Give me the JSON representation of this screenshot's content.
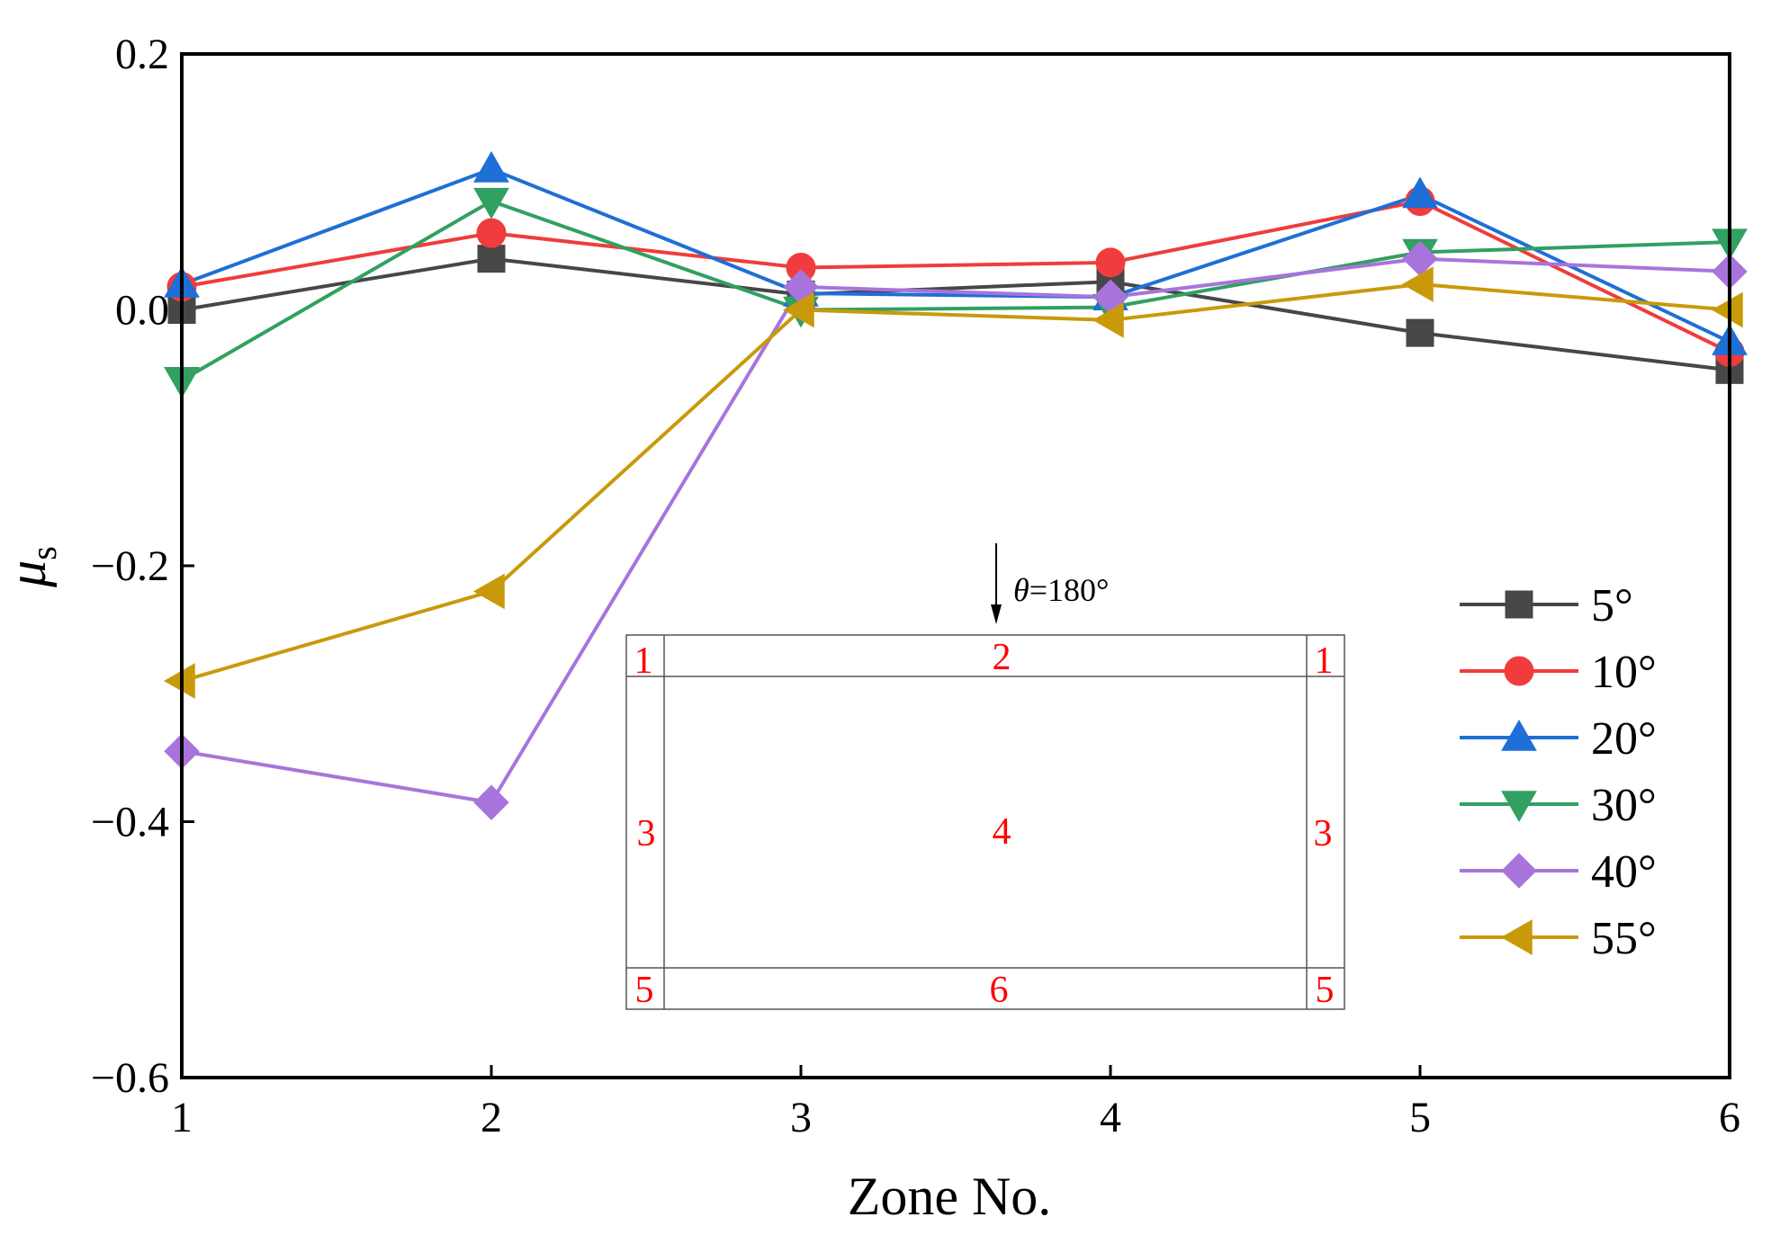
{
  "chart_data": {
    "type": "line",
    "title": "",
    "xlabel": "Zone No.",
    "ylabel_main": "μ",
    "ylabel_sub": "s",
    "x": [
      1,
      2,
      3,
      4,
      5,
      6
    ],
    "xlim": [
      1,
      6
    ],
    "ylim": [
      -0.6,
      0.2
    ],
    "xticks": [
      1,
      2,
      3,
      4,
      5,
      6
    ],
    "xtick_labels": [
      "1",
      "2",
      "3",
      "4",
      "5",
      "6"
    ],
    "yticks": [
      -0.6,
      -0.4,
      -0.2,
      0.0,
      0.2
    ],
    "ytick_labels": [
      "−0.6",
      "−0.4",
      "−0.2",
      "0.0",
      "0.2"
    ],
    "grid": false,
    "legend_position": "right",
    "series": [
      {
        "name": "5°",
        "color": "#474747",
        "marker": "square",
        "values": [
          0.0,
          0.04,
          0.012,
          0.022,
          -0.018,
          -0.047
        ]
      },
      {
        "name": "10°",
        "color": "#f03c3c",
        "marker": "circle",
        "values": [
          0.018,
          0.06,
          0.033,
          0.037,
          0.085,
          -0.033
        ]
      },
      {
        "name": "20°",
        "color": "#1e6fd6",
        "marker": "triangle-up",
        "values": [
          0.02,
          0.11,
          0.013,
          0.01,
          0.09,
          -0.025
        ]
      },
      {
        "name": "30°",
        "color": "#31a060",
        "marker": "triangle-down",
        "values": [
          -0.055,
          0.085,
          0.0,
          0.002,
          0.045,
          0.053
        ]
      },
      {
        "name": "40°",
        "color": "#a874dc",
        "marker": "diamond",
        "values": [
          -0.345,
          -0.385,
          0.018,
          0.01,
          0.04,
          0.03
        ]
      },
      {
        "name": "55°",
        "color": "#c89a0a",
        "marker": "triangle-left",
        "values": [
          -0.29,
          -0.22,
          0.0,
          -0.008,
          0.02,
          0.0
        ]
      }
    ],
    "inset": {
      "arrow_label_symbol": "θ",
      "arrow_label_value": "=180°",
      "text_color": "#ff0000",
      "zones": [
        {
          "label": "1",
          "pos": "top-left"
        },
        {
          "label": "2",
          "pos": "top-center"
        },
        {
          "label": "1",
          "pos": "top-right"
        },
        {
          "label": "3",
          "pos": "mid-left"
        },
        {
          "label": "4",
          "pos": "center"
        },
        {
          "label": "3",
          "pos": "mid-right"
        },
        {
          "label": "5",
          "pos": "bottom-left"
        },
        {
          "label": "6",
          "pos": "bottom-center"
        },
        {
          "label": "5",
          "pos": "bottom-right"
        }
      ]
    }
  }
}
